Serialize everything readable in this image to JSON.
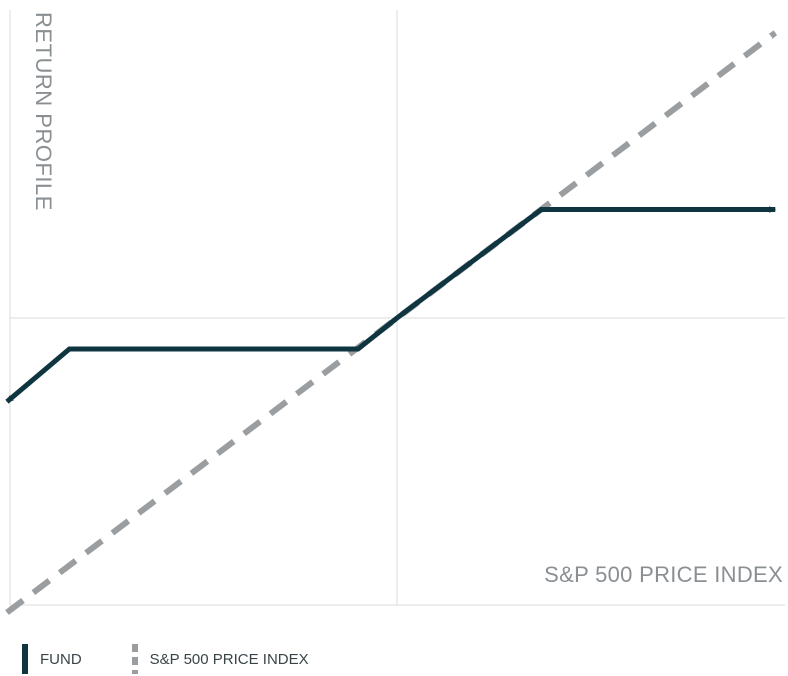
{
  "chart_data": {
    "type": "line",
    "ylabel": "RETURN PROFILE",
    "xlabel": "S&P 500 PRICE INDEX",
    "xlim": [
      -1,
      1
    ],
    "ylim": [
      -1,
      1
    ],
    "grid": true,
    "legend_position": "bottom-left",
    "series": [
      {
        "name": "FUND",
        "style": "solid",
        "color": "#0f3540",
        "x": [
          -1,
          -0.84,
          -0.1,
          0,
          0.37,
          0.97
        ],
        "y": [
          -0.27,
          -0.1,
          -0.1,
          0,
          0.35,
          0.35
        ],
        "arrows": [
          "start",
          "end"
        ]
      },
      {
        "name": "S&P 500 PRICE INDEX",
        "style": "dashed",
        "color": "#9a9ea1",
        "x": [
          -1,
          0.97
        ],
        "y": [
          -0.95,
          0.92
        ],
        "arrows": [
          "start",
          "end"
        ]
      }
    ]
  },
  "legend": {
    "fund": "FUND",
    "index": "S&P 500 PRICE INDEX"
  }
}
